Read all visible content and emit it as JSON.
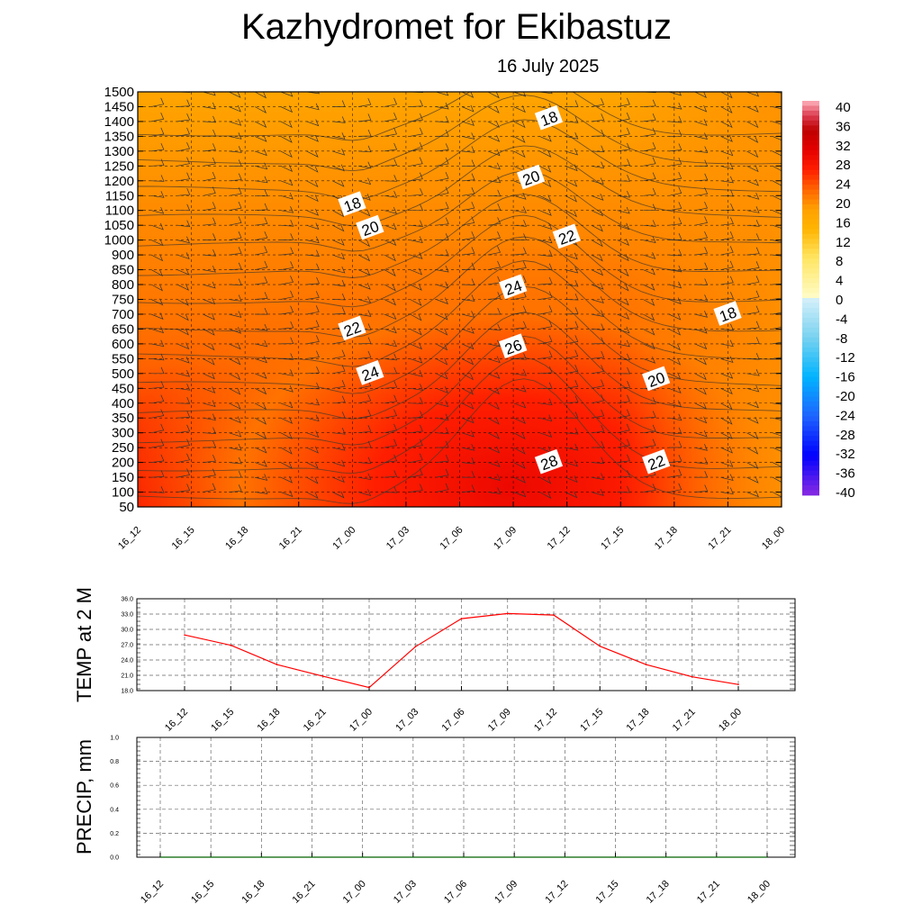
{
  "title": "Kazhydromet  for Ekibastuz",
  "date": "16 July 2025",
  "colors": {
    "temp_line": "#ff0000",
    "precip_line": "#006400",
    "contour_line": "#4a3a2a",
    "label_box": "#ffffff"
  },
  "time_labels": [
    "16_12",
    "16_15",
    "16_18",
    "16_21",
    "17_00",
    "17_03",
    "17_06",
    "17_09",
    "17_12",
    "17_15",
    "17_18",
    "17_21",
    "18_00"
  ],
  "chart_data": [
    {
      "type": "heatmap",
      "title": "",
      "xlabel": "",
      "ylabel": "",
      "x": [
        "16_12",
        "16_15",
        "16_18",
        "16_21",
        "17_00",
        "17_03",
        "17_06",
        "17_09",
        "17_12",
        "17_15",
        "17_18",
        "17_21",
        "18_00"
      ],
      "y_ticks": [
        50,
        100,
        150,
        200,
        250,
        300,
        350,
        400,
        450,
        500,
        550,
        600,
        650,
        700,
        750,
        800,
        850,
        900,
        1000,
        1050,
        1100,
        1150,
        1200,
        1250,
        1300,
        1350,
        1400,
        1450,
        1500
      ],
      "ylim": [
        50,
        1500
      ],
      "colorbar_ticks": [
        40,
        36,
        32,
        28,
        24,
        20,
        16,
        12,
        8,
        4,
        0,
        -4,
        -8,
        -12,
        -16,
        -20,
        -24,
        -28,
        -32,
        -36,
        -40
      ],
      "colorbar_range": [
        -40,
        40
      ],
      "contour_labels": [
        {
          "text": "18",
          "time": "17_00",
          "level": 1120
        },
        {
          "text": "20",
          "time": "17_01",
          "level": 1040
        },
        {
          "text": "22",
          "time": "17_00",
          "level": 650
        },
        {
          "text": "24",
          "time": "17_01",
          "level": 500
        },
        {
          "text": "18",
          "time": "17_11",
          "level": 1410
        },
        {
          "text": "20",
          "time": "17_10",
          "level": 1210
        },
        {
          "text": "22",
          "time": "17_12",
          "level": 1010
        },
        {
          "text": "24",
          "time": "17_09",
          "level": 790
        },
        {
          "text": "26",
          "time": "17_09",
          "level": 590
        },
        {
          "text": "28",
          "time": "17_11",
          "level": 200
        },
        {
          "text": "20",
          "time": "17_17",
          "level": 480
        },
        {
          "text": "22",
          "time": "17_17",
          "level": 200
        },
        {
          "text": "18",
          "time": "17_21",
          "level": 700
        }
      ],
      "grid": true,
      "wind_barbs": true
    },
    {
      "type": "line",
      "title": "",
      "ylabel": "TEMP at 2 M",
      "x": [
        "16_12",
        "16_15",
        "16_18",
        "16_21",
        "17_00",
        "17_03",
        "17_06",
        "17_09",
        "17_12",
        "17_15",
        "17_18",
        "17_21",
        "18_00"
      ],
      "series": [
        {
          "values": [
            28.9,
            26.9,
            23.1,
            20.8,
            18.6,
            26.6,
            32.1,
            33.1,
            32.8,
            26.7,
            23.1,
            20.7,
            19.2
          ]
        }
      ],
      "ylim": [
        18.0,
        36.0
      ],
      "y_ticks": [
        "36.0",
        "33.0",
        "30.0",
        "27.0",
        "24.0",
        "21.0",
        "18.0"
      ],
      "grid": true
    },
    {
      "type": "line",
      "title": "",
      "ylabel": "PRECIP, mm",
      "x": [
        "16_12",
        "16_15",
        "16_18",
        "16_21",
        "17_00",
        "17_03",
        "17_06",
        "17_09",
        "17_12",
        "17_15",
        "17_18",
        "17_21",
        "18_00"
      ],
      "series": [
        {
          "values": [
            0,
            0,
            0,
            0,
            0,
            0,
            0,
            0,
            0,
            0,
            0,
            0,
            0
          ]
        }
      ],
      "ylim": [
        0.0,
        1.0
      ],
      "y_ticks": [
        "1.0",
        "0.8",
        "0.6",
        "0.4",
        "0.2",
        "0.0"
      ],
      "grid": true
    }
  ]
}
